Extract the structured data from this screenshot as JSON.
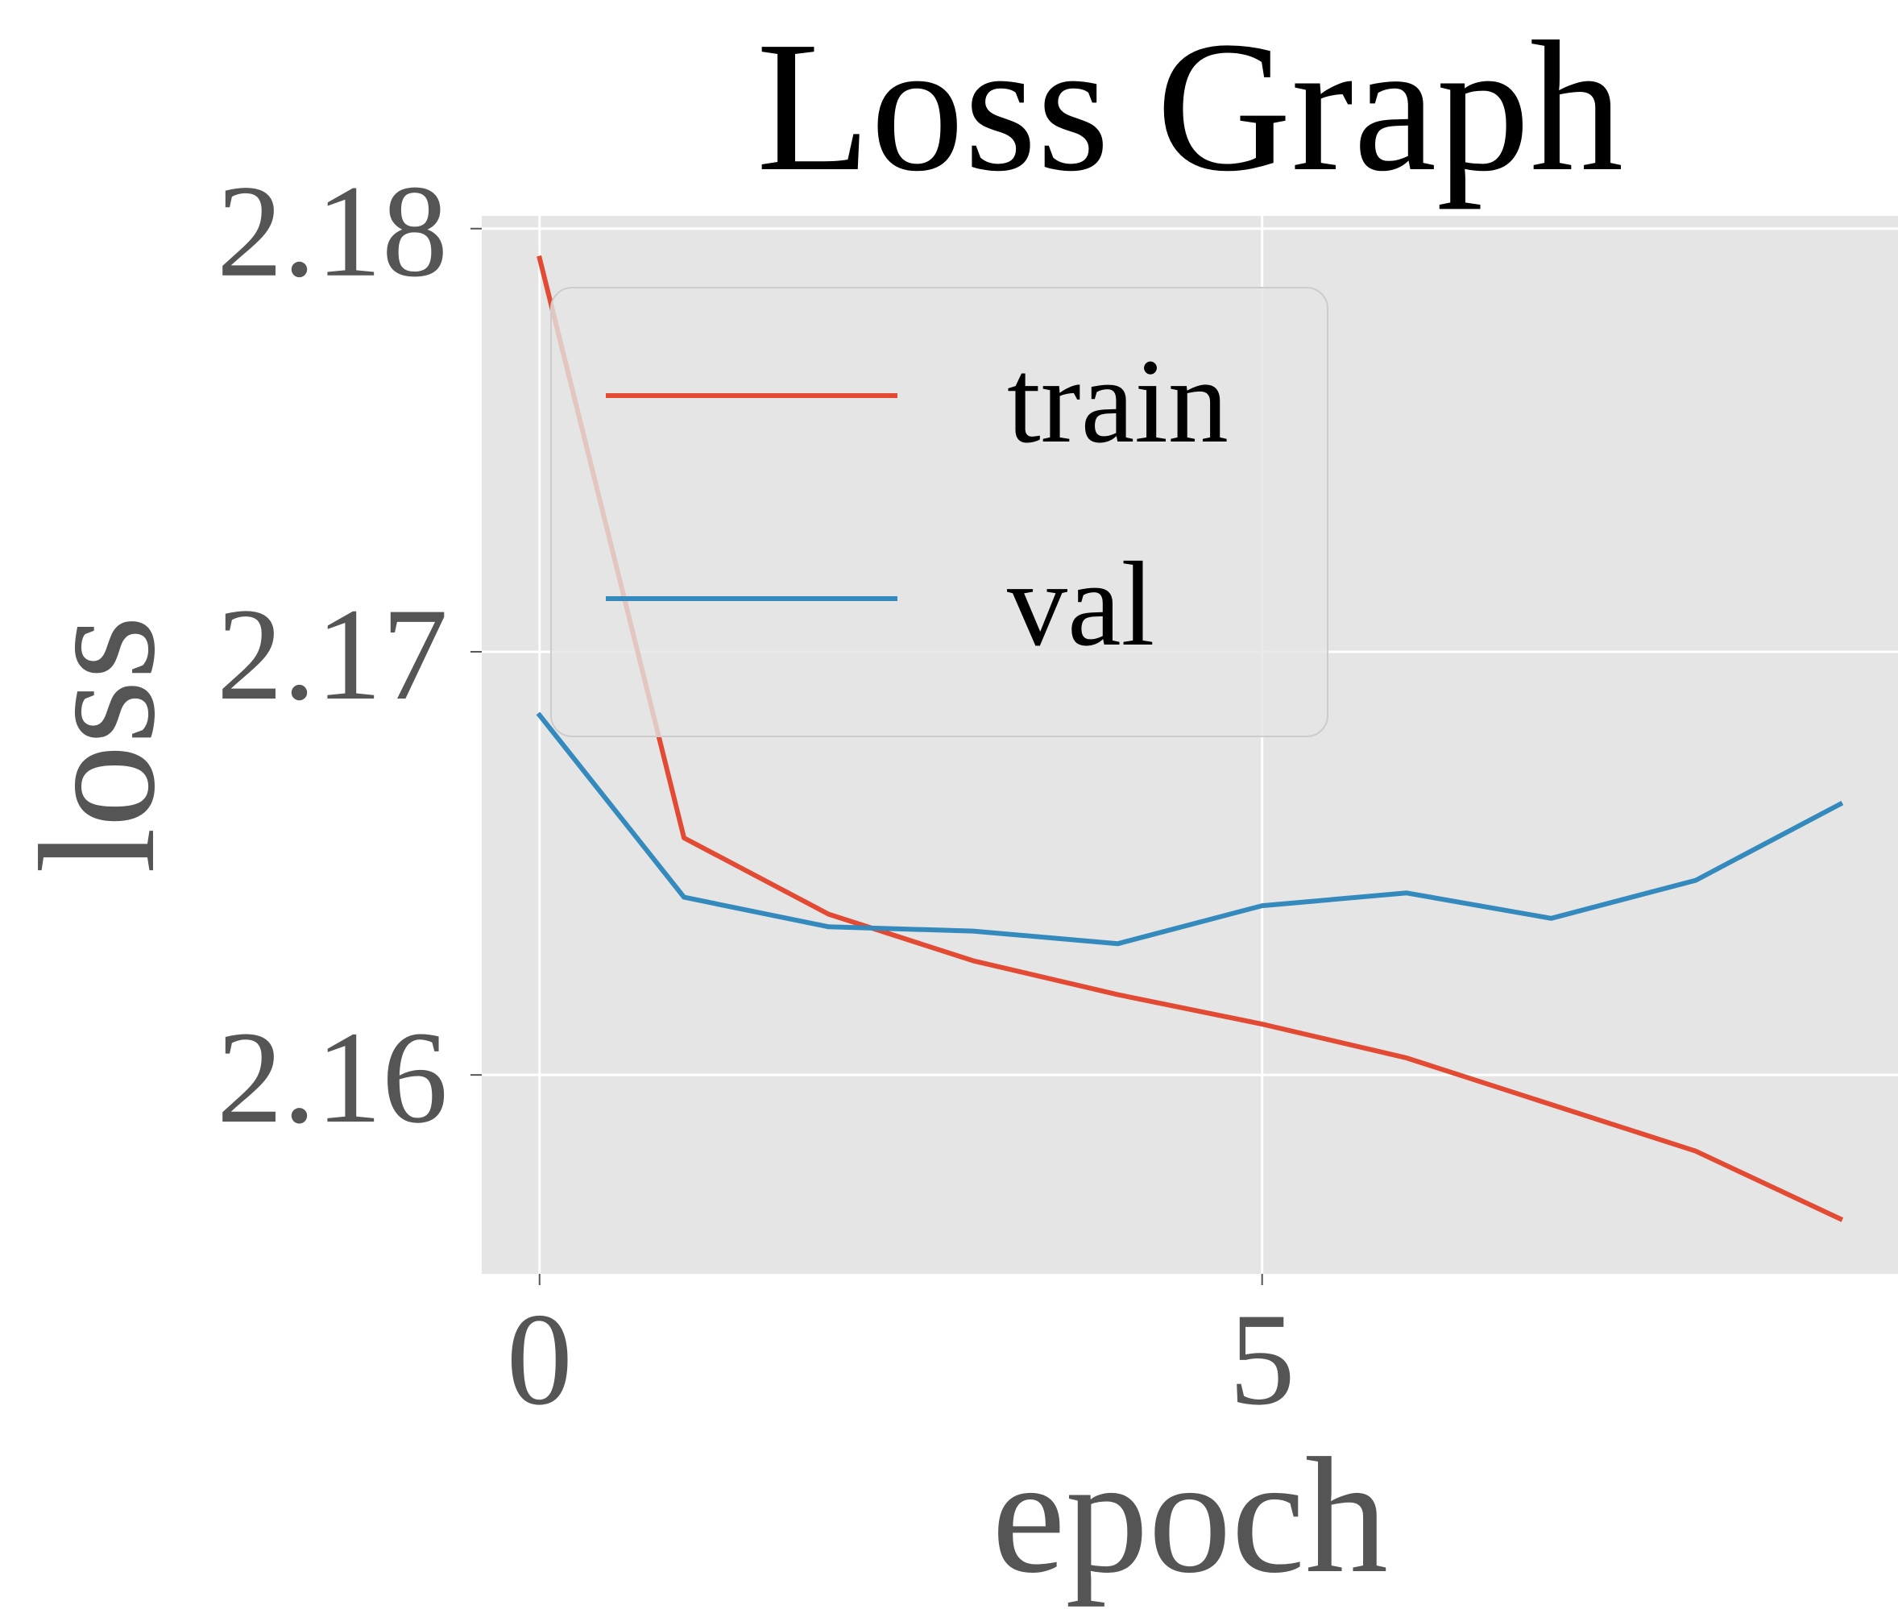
{
  "chart_data": {
    "type": "line",
    "title": "Loss Graph",
    "xlabel": "epoch",
    "ylabel": "loss",
    "xlim": [
      -0.4,
      9.4
    ],
    "ylim": [
      2.1553,
      2.1803
    ],
    "xticks": [
      0,
      5
    ],
    "xtick_labels": [
      "0",
      "5"
    ],
    "yticks": [
      2.16,
      2.17,
      2.18
    ],
    "ytick_labels": [
      "2.16",
      "2.17",
      "2.18"
    ],
    "grid": true,
    "legend_position": "upper-left",
    "x": [
      0,
      1,
      2,
      3,
      4,
      5,
      6,
      7,
      8,
      9
    ],
    "series": [
      {
        "name": "train",
        "color": "#e24a33",
        "values": [
          2.1793,
          2.1656,
          2.1638,
          2.1627,
          2.1619,
          2.1612,
          2.1604,
          2.1593,
          2.1582,
          2.1566
        ]
      },
      {
        "name": "val",
        "color": "#348abd",
        "values": [
          2.1685,
          2.1642,
          2.1635,
          2.1634,
          2.1631,
          2.164,
          2.1643,
          2.1637,
          2.1646,
          2.1664
        ]
      }
    ],
    "background_color": "#e5e5e5",
    "grid_color": "#ffffff"
  }
}
